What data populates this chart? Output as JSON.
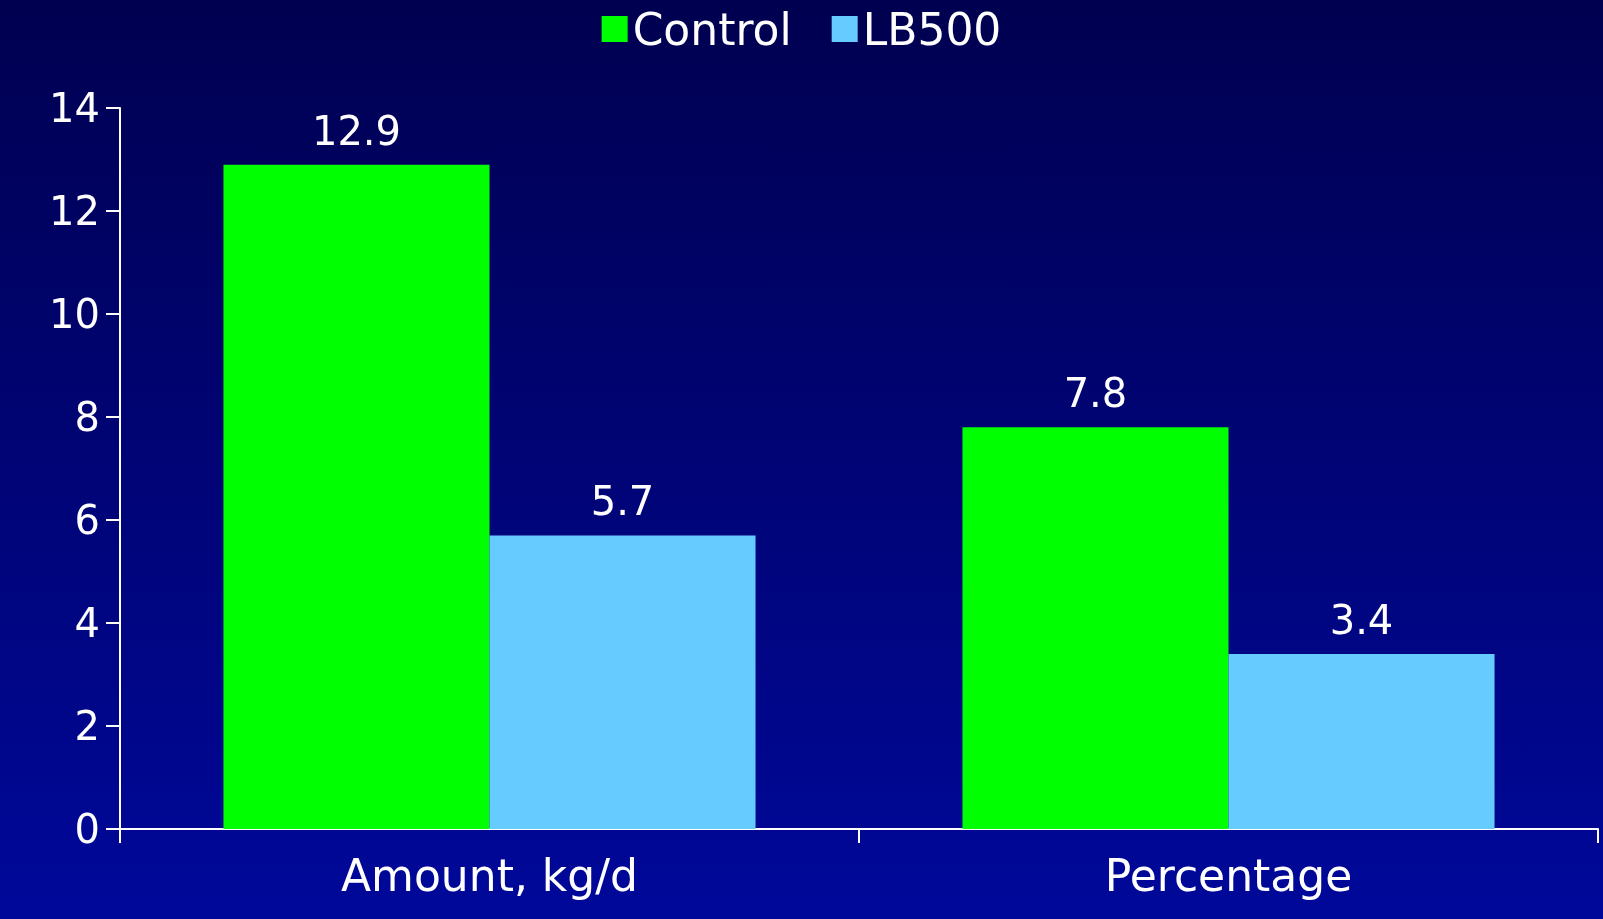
{
  "chart_data": {
    "type": "bar",
    "categories": [
      "Amount, kg/d",
      "Percentage"
    ],
    "series": [
      {
        "name": "Control",
        "color": "#00ff00",
        "values": [
          12.9,
          7.8
        ]
      },
      {
        "name": "LB500",
        "color": "#66ccff",
        "values": [
          5.7,
          3.4
        ]
      }
    ],
    "ylim": [
      0,
      14
    ],
    "yticks": [
      0,
      2,
      4,
      6,
      8,
      10,
      12,
      14
    ],
    "data_labels": true,
    "grid": false,
    "legend": "top"
  }
}
